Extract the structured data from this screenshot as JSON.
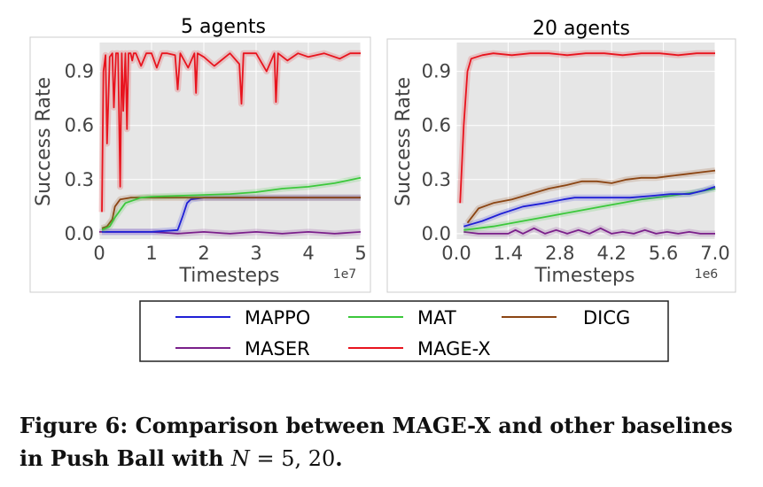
{
  "colors": {
    "MAPPO": "#1f1fd6",
    "MAT": "#3cc83c",
    "DICG": "#8b4513",
    "MASER": "#7a1f8a",
    "MAGE-X": "#e8141e",
    "panel_bg": "#e6e6e6",
    "grid": "#ffffff"
  },
  "legend": {
    "placement": "below",
    "entries": [
      "MAPPO",
      "MAT",
      "DICG",
      "MASER",
      "MAGE-X"
    ]
  },
  "caption": {
    "label": "Figure 6:",
    "text": "Comparison between MAGE-X and other baselines in Push Ball with",
    "var": "N",
    "eq": " = ",
    "values": "5, 20",
    "end": "."
  },
  "chart_data": [
    {
      "type": "line",
      "title": "5 agents",
      "xlabel": "Timesteps",
      "ylabel": "Success Rate",
      "x_multiplier": "1e7",
      "xlim": [
        0,
        5
      ],
      "ylim": [
        -0.03,
        1.06
      ],
      "xticks": [
        0,
        1,
        2,
        3,
        4,
        5
      ],
      "xtick_labels": [
        "0",
        "1",
        "2",
        "3",
        "4",
        "5"
      ],
      "yticks": [
        0.0,
        0.3,
        0.6,
        0.9
      ],
      "ytick_labels": [
        "0.0",
        "0.3",
        "0.6",
        "0.9"
      ],
      "grid": true,
      "series": [
        {
          "name": "MASER",
          "x": [
            0,
            0.5,
            1,
            1.5,
            2,
            2.5,
            3,
            3.5,
            4,
            4.5,
            5
          ],
          "y": [
            0.01,
            0.01,
            0.01,
            0.0,
            0.01,
            0.0,
            0.01,
            0.0,
            0.01,
            0.0,
            0.01
          ]
        },
        {
          "name": "MAPPO",
          "x": [
            0.05,
            0.5,
            1.0,
            1.5,
            1.6,
            1.68,
            1.75,
            2,
            3,
            4,
            5
          ],
          "y": [
            0.01,
            0.01,
            0.01,
            0.02,
            0.1,
            0.17,
            0.19,
            0.2,
            0.2,
            0.2,
            0.2
          ]
        },
        {
          "name": "DICG",
          "x": [
            0.05,
            0.15,
            0.25,
            0.3,
            0.4,
            0.6,
            1,
            2,
            3,
            4,
            5
          ],
          "y": [
            0.03,
            0.04,
            0.08,
            0.15,
            0.19,
            0.2,
            0.2,
            0.2,
            0.2,
            0.2,
            0.2
          ]
        },
        {
          "name": "MAT",
          "x": [
            0.05,
            0.2,
            0.3,
            0.5,
            0.8,
            1,
            1.5,
            2,
            2.5,
            3,
            3.5,
            4,
            4.5,
            5
          ],
          "y": [
            0.02,
            0.04,
            0.09,
            0.17,
            0.2,
            0.205,
            0.21,
            0.215,
            0.22,
            0.23,
            0.25,
            0.26,
            0.28,
            0.31
          ]
        },
        {
          "name": "MAGE-X",
          "x": [
            0.05,
            0.08,
            0.12,
            0.15,
            0.2,
            0.25,
            0.28,
            0.32,
            0.36,
            0.4,
            0.43,
            0.46,
            0.5,
            0.53,
            0.56,
            0.6,
            0.63,
            0.66,
            0.7,
            0.8,
            0.9,
            1.0,
            1.1,
            1.2,
            1.3,
            1.45,
            1.5,
            1.55,
            1.7,
            1.82,
            1.85,
            1.88,
            2.0,
            2.2,
            2.5,
            2.68,
            2.72,
            2.76,
            3.0,
            3.2,
            3.35,
            3.38,
            3.42,
            3.6,
            3.8,
            4.0,
            4.3,
            4.6,
            4.8,
            5.0
          ],
          "y": [
            0.12,
            0.9,
            0.99,
            0.5,
            0.98,
            1.0,
            0.7,
            1.0,
            1.0,
            0.26,
            1.0,
            0.68,
            1.0,
            0.58,
            1.0,
            1.0,
            0.96,
            1.0,
            1.0,
            0.93,
            1.0,
            1.0,
            0.92,
            1.0,
            1.0,
            0.99,
            0.8,
            1.0,
            0.92,
            1.0,
            0.78,
            1.0,
            0.98,
            0.93,
            1.0,
            0.94,
            0.72,
            1.0,
            1.0,
            0.9,
            1.0,
            0.73,
            1.0,
            0.96,
            1.0,
            0.98,
            1.0,
            0.97,
            1.0,
            1.0
          ]
        }
      ]
    },
    {
      "type": "line",
      "title": "20 agents",
      "xlabel": "Timesteps",
      "ylabel": "Success Rate",
      "x_multiplier": "1e6",
      "xlim": [
        0,
        7.0
      ],
      "ylim": [
        -0.03,
        1.06
      ],
      "xticks": [
        0.0,
        1.4,
        2.8,
        4.2,
        5.6,
        7.0
      ],
      "xtick_labels": [
        "0.0",
        "1.4",
        "2.8",
        "4.2",
        "5.6",
        "7.0"
      ],
      "yticks": [
        0.0,
        0.3,
        0.6,
        0.9
      ],
      "ytick_labels": [
        "0.0",
        "0.3",
        "0.6",
        "0.9"
      ],
      "grid": true,
      "series": [
        {
          "name": "MASER",
          "x": [
            0.2,
            0.6,
            1.0,
            1.4,
            1.6,
            1.8,
            2.1,
            2.4,
            2.7,
            3.0,
            3.3,
            3.6,
            3.9,
            4.2,
            4.5,
            4.8,
            5.1,
            5.4,
            5.7,
            6.0,
            6.3,
            6.6,
            7.0
          ],
          "y": [
            0.01,
            0.0,
            0.0,
            0.0,
            0.02,
            0.0,
            0.03,
            0.0,
            0.02,
            0.0,
            0.02,
            0.0,
            0.03,
            0.0,
            0.01,
            0.0,
            0.02,
            0.0,
            0.01,
            0.0,
            0.01,
            0.0,
            0.0
          ]
        },
        {
          "name": "MAT",
          "x": [
            0.2,
            1.0,
            1.8,
            2.6,
            3.4,
            4.2,
            5.0,
            5.8,
            6.5,
            7.0
          ],
          "y": [
            0.02,
            0.04,
            0.07,
            0.1,
            0.13,
            0.16,
            0.19,
            0.21,
            0.23,
            0.25
          ]
        },
        {
          "name": "MAPPO",
          "x": [
            0.2,
            0.7,
            1.2,
            1.8,
            2.4,
            2.9,
            3.2,
            3.6,
            4.2,
            4.7,
            5.3,
            5.8,
            6.3,
            6.7,
            7.0
          ],
          "y": [
            0.04,
            0.07,
            0.11,
            0.15,
            0.17,
            0.19,
            0.2,
            0.2,
            0.2,
            0.2,
            0.21,
            0.22,
            0.22,
            0.24,
            0.26
          ]
        },
        {
          "name": "DICG",
          "x": [
            0.3,
            0.6,
            1.0,
            1.5,
            2.0,
            2.5,
            3.0,
            3.4,
            3.8,
            4.2,
            4.6,
            5.0,
            5.4,
            5.8,
            6.2,
            6.6,
            7.0
          ],
          "y": [
            0.06,
            0.14,
            0.17,
            0.19,
            0.22,
            0.25,
            0.27,
            0.29,
            0.29,
            0.28,
            0.3,
            0.31,
            0.31,
            0.32,
            0.33,
            0.34,
            0.35
          ]
        },
        {
          "name": "MAGE-X",
          "x": [
            0.1,
            0.2,
            0.3,
            0.4,
            0.55,
            0.7,
            1.0,
            1.5,
            2.0,
            2.5,
            3.0,
            3.5,
            4.0,
            4.5,
            5.0,
            5.5,
            6.0,
            6.5,
            7.0
          ],
          "y": [
            0.17,
            0.6,
            0.9,
            0.97,
            0.98,
            0.99,
            1.0,
            0.99,
            1.0,
            1.0,
            0.99,
            1.0,
            1.0,
            0.99,
            1.0,
            1.0,
            0.99,
            1.0,
            1.0
          ]
        }
      ]
    }
  ]
}
